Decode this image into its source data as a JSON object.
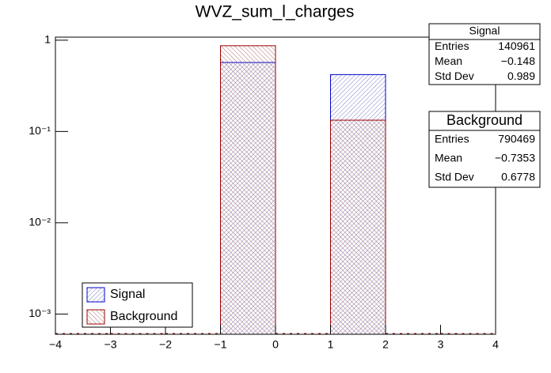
{
  "chart_data": {
    "type": "histogram",
    "title": "WVZ_sum_l_charges",
    "bins": [
      -4,
      -3,
      -2,
      -1,
      0,
      1,
      2,
      3,
      4
    ],
    "xlim": [
      -4,
      4
    ],
    "xticks": [
      {
        "value": -4,
        "label": "−4"
      },
      {
        "value": -3,
        "label": "−3"
      },
      {
        "value": -2,
        "label": "−2"
      },
      {
        "value": -1,
        "label": "−1"
      },
      0,
      1,
      2,
      3,
      4
    ],
    "ylim": [
      0.0006,
      1.08
    ],
    "log_y": true,
    "yticks": [
      {
        "value": 0.001,
        "label": "10⁻³"
      },
      {
        "value": 0.01,
        "label": "10⁻²"
      },
      {
        "value": 0.1,
        "label": "10⁻¹"
      },
      1
    ],
    "series": [
      {
        "name": "Signal",
        "color": "#0000cc",
        "values": [
          0,
          0,
          0,
          0.57,
          0,
          0.42,
          0,
          0
        ]
      },
      {
        "name": "Background",
        "color": "#990000",
        "values": [
          0,
          0,
          0,
          0.87,
          0,
          0.133,
          0,
          0
        ]
      }
    ],
    "legend": "lower left",
    "stats": [
      {
        "title": "Signal",
        "rows": [
          [
            "Entries",
            "140961"
          ],
          [
            "Mean",
            "−0.148"
          ],
          [
            "Std Dev",
            "0.989"
          ]
        ]
      },
      {
        "title": "Background",
        "rows": [
          [
            "Entries",
            "790469"
          ],
          [
            "Mean",
            "−0.7353"
          ],
          [
            "Std Dev",
            "0.6778"
          ]
        ]
      }
    ]
  }
}
